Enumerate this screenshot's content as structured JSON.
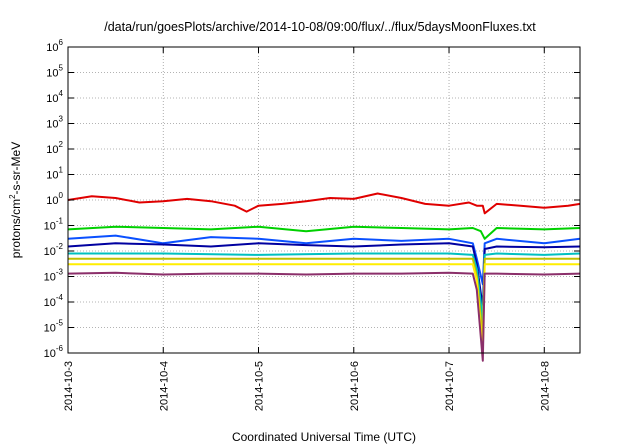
{
  "chart_data": {
    "type": "line",
    "title": "/data/run/goesPlots/archive/2014-10-08/09:00/flux/../flux/5daysMoonFluxes.txt",
    "xlabel": "Coordinated Universal Time (UTC)",
    "ylabel_parts": {
      "pre": "protons/cm",
      "sup": "2",
      "post": "-s-sr-MeV"
    },
    "y_scale": "log",
    "ylim": [
      1e-06,
      1000000.0
    ],
    "y_ticks": [
      {
        "value": 1e-06,
        "base": "10",
        "exp": "-6"
      },
      {
        "value": 1e-05,
        "base": "10",
        "exp": "-5"
      },
      {
        "value": 0.0001,
        "base": "10",
        "exp": "-4"
      },
      {
        "value": 0.001,
        "base": "10",
        "exp": "-3"
      },
      {
        "value": 0.01,
        "base": "10",
        "exp": "-2"
      },
      {
        "value": 0.1,
        "base": "10",
        "exp": "-1"
      },
      {
        "value": 1,
        "base": "10",
        "exp": "0"
      },
      {
        "value": 10.0,
        "base": "10",
        "exp": "1"
      },
      {
        "value": 100.0,
        "base": "10",
        "exp": "2"
      },
      {
        "value": 1000.0,
        "base": "10",
        "exp": "3"
      },
      {
        "value": 10000.0,
        "base": "10",
        "exp": "4"
      },
      {
        "value": 100000.0,
        "base": "10",
        "exp": "5"
      },
      {
        "value": 1000000.0,
        "base": "10",
        "exp": "6"
      }
    ],
    "x_type": "date",
    "xlim": [
      "2014-10-03T00:00",
      "2014-10-08T09:00"
    ],
    "x_ticks": [
      "2014-10-3",
      "2014-10-4",
      "2014-10-5",
      "2014-10-6",
      "2014-10-7",
      "2014-10-8"
    ],
    "grid": true,
    "legend": "none",
    "series": [
      {
        "color": "#e00000",
        "x": [
          "2014-10-03T00:00",
          "2014-10-03T06:00",
          "2014-10-03T12:00",
          "2014-10-03T18:00",
          "2014-10-04T00:00",
          "2014-10-04T06:00",
          "2014-10-04T12:00",
          "2014-10-04T18:00",
          "2014-10-04T21:00",
          "2014-10-05T00:00",
          "2014-10-05T06:00",
          "2014-10-05T12:00",
          "2014-10-05T18:00",
          "2014-10-06T00:00",
          "2014-10-06T06:00",
          "2014-10-06T12:00",
          "2014-10-06T18:00",
          "2014-10-07T00:00",
          "2014-10-07T05:00",
          "2014-10-07T07:00",
          "2014-10-07T08:30",
          "2014-10-07T09:00",
          "2014-10-07T12:00",
          "2014-10-07T18:00",
          "2014-10-08T00:00",
          "2014-10-08T06:00",
          "2014-10-08T09:00"
        ],
        "y": [
          1.0,
          1.4,
          1.2,
          0.8,
          0.9,
          1.1,
          0.9,
          0.6,
          0.35,
          0.6,
          0.7,
          0.9,
          1.2,
          1.1,
          1.8,
          1.2,
          0.7,
          0.6,
          0.8,
          0.6,
          0.6,
          0.3,
          0.7,
          0.6,
          0.5,
          0.6,
          0.7
        ]
      },
      {
        "color": "#00d000",
        "x": [
          "2014-10-03T00:00",
          "2014-10-03T12:00",
          "2014-10-04T00:00",
          "2014-10-04T12:00",
          "2014-10-05T00:00",
          "2014-10-05T12:00",
          "2014-10-06T00:00",
          "2014-10-06T12:00",
          "2014-10-07T00:00",
          "2014-10-07T06:00",
          "2014-10-07T08:00",
          "2014-10-07T09:00",
          "2014-10-07T12:00",
          "2014-10-08T00:00",
          "2014-10-08T09:00"
        ],
        "y": [
          0.07,
          0.09,
          0.08,
          0.07,
          0.09,
          0.06,
          0.09,
          0.08,
          0.07,
          0.08,
          0.06,
          0.03,
          0.08,
          0.07,
          0.08
        ]
      },
      {
        "color": "#0a50ff",
        "x": [
          "2014-10-03T00:00",
          "2014-10-03T12:00",
          "2014-10-04T00:00",
          "2014-10-04T12:00",
          "2014-10-05T00:00",
          "2014-10-05T12:00",
          "2014-10-06T00:00",
          "2014-10-06T12:00",
          "2014-10-07T00:00",
          "2014-10-07T06:00",
          "2014-10-07T07:00",
          "2014-10-07T08:30",
          "2014-10-07T09:00",
          "2014-10-07T12:00",
          "2014-10-08T00:00",
          "2014-10-08T09:00"
        ],
        "y": [
          0.03,
          0.04,
          0.02,
          0.035,
          0.03,
          0.02,
          0.03,
          0.025,
          0.03,
          0.02,
          0.005,
          0.0005,
          0.02,
          0.03,
          0.02,
          0.03
        ]
      },
      {
        "color": "#0000a0",
        "x": [
          "2014-10-03T00:00",
          "2014-10-03T12:00",
          "2014-10-04T00:00",
          "2014-10-04T12:00",
          "2014-10-05T00:00",
          "2014-10-05T12:00",
          "2014-10-06T00:00",
          "2014-10-06T12:00",
          "2014-10-07T00:00",
          "2014-10-07T06:00",
          "2014-10-07T07:00",
          "2014-10-07T08:30",
          "2014-10-07T09:00",
          "2014-10-07T12:00",
          "2014-10-08T00:00",
          "2014-10-08T09:00"
        ],
        "y": [
          0.015,
          0.02,
          0.018,
          0.015,
          0.02,
          0.017,
          0.015,
          0.018,
          0.02,
          0.015,
          0.003,
          6e-05,
          0.012,
          0.015,
          0.014,
          0.015
        ]
      },
      {
        "color": "#00c0c0",
        "x": [
          "2014-10-03T00:00",
          "2014-10-04T00:00",
          "2014-10-05T00:00",
          "2014-10-06T00:00",
          "2014-10-07T00:00",
          "2014-10-07T06:00",
          "2014-10-07T07:00",
          "2014-10-07T08:30",
          "2014-10-07T09:00",
          "2014-10-07T12:00",
          "2014-10-08T00:00",
          "2014-10-08T09:00"
        ],
        "y": [
          0.008,
          0.008,
          0.007,
          0.008,
          0.008,
          0.007,
          0.002,
          2e-05,
          0.007,
          0.008,
          0.007,
          0.008
        ]
      },
      {
        "color": "#c0c000",
        "x": [
          "2014-10-03T00:00",
          "2014-10-04T00:00",
          "2014-10-05T00:00",
          "2014-10-06T00:00",
          "2014-10-07T00:00",
          "2014-10-07T06:00",
          "2014-10-07T07:00",
          "2014-10-07T08:30",
          "2014-10-07T09:00",
          "2014-10-07T12:00",
          "2014-10-08T00:00",
          "2014-10-08T09:00"
        ],
        "y": [
          0.005,
          0.005,
          0.005,
          0.005,
          0.005,
          0.005,
          0.001,
          4e-06,
          0.005,
          0.005,
          0.005,
          0.005
        ]
      },
      {
        "color": "#ffee00",
        "x": [
          "2014-10-03T00:00",
          "2014-10-04T00:00",
          "2014-10-05T00:00",
          "2014-10-06T00:00",
          "2014-10-07T00:00",
          "2014-10-07T06:00",
          "2014-10-07T07:00",
          "2014-10-07T08:30",
          "2014-10-07T09:00",
          "2014-10-07T12:00",
          "2014-10-08T00:00",
          "2014-10-08T09:00"
        ],
        "y": [
          0.003,
          0.003,
          0.003,
          0.003,
          0.003,
          0.003,
          0.0007,
          1e-06,
          0.003,
          0.003,
          0.003,
          0.003
        ]
      },
      {
        "color": "#8b2f6a",
        "x": [
          "2014-10-03T00:00",
          "2014-10-03T12:00",
          "2014-10-04T00:00",
          "2014-10-04T12:00",
          "2014-10-05T00:00",
          "2014-10-05T12:00",
          "2014-10-06T00:00",
          "2014-10-06T12:00",
          "2014-10-07T00:00",
          "2014-10-07T06:00",
          "2014-10-07T07:00",
          "2014-10-07T08:30",
          "2014-10-07T09:00",
          "2014-10-07T12:00",
          "2014-10-08T00:00",
          "2014-10-08T09:00"
        ],
        "y": [
          0.0013,
          0.0014,
          0.0012,
          0.0013,
          0.0013,
          0.0012,
          0.0013,
          0.0013,
          0.0014,
          0.0013,
          0.0003,
          5e-07,
          0.0013,
          0.0013,
          0.0012,
          0.0013
        ]
      }
    ]
  }
}
